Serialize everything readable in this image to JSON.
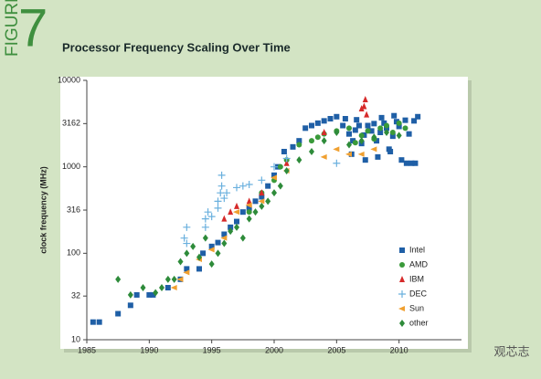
{
  "figure_label": "FIGURE",
  "figure_number": "7",
  "watermark": "观芯志",
  "chart_data": {
    "type": "scatter",
    "title": "Processor Frequency Scaling Over Time",
    "y_label": "clock frequency (MHz)",
    "xlim": [
      1985,
      2015
    ],
    "xticks": [
      1985,
      1990,
      1995,
      2000,
      2005,
      2010
    ],
    "ylim": [
      10,
      10000
    ],
    "yticks": [
      10,
      32,
      100,
      316,
      1000,
      3162,
      10000
    ],
    "log_y": true,
    "grid": false,
    "legend": "lower right",
    "series": [
      {
        "name": "Intel",
        "color": "#1f5fa6",
        "marker": "square",
        "x": [
          1985.5,
          1986,
          1987.5,
          1988.5,
          1989,
          1990,
          1990.3,
          1991.5,
          1992.5,
          1993,
          1994,
          1994.3,
          1995,
          1995.5,
          1996,
          1996.5,
          1997,
          1997.5,
          1998,
          1998.5,
          1999,
          1999.5,
          2000,
          2000.3,
          2000.8,
          2001.5,
          2002,
          2002.5,
          2003,
          2003.5,
          2004,
          2004.5,
          2005,
          2005.5,
          2006,
          2006.3,
          2006.5,
          2006.8,
          2007,
          2007.2,
          2007.5,
          2007.8,
          2008,
          2008.2,
          2008.5,
          2008.8,
          2009,
          2009.2,
          2009.5,
          2009.8,
          2010,
          2010.2,
          2010.5,
          2010.8,
          2011,
          2011.2,
          2011.5,
          2006.2,
          2007.3,
          2008.3,
          2009.3,
          2005.7,
          2006.6,
          2008.6,
          2009.6,
          2010.6,
          2011.3
        ],
        "values": [
          16,
          16,
          20,
          25,
          33,
          33,
          33,
          40,
          50,
          66,
          66,
          100,
          120,
          133,
          166,
          200,
          233,
          300,
          333,
          400,
          450,
          600,
          800,
          1000,
          1500,
          1700,
          2000,
          2800,
          3000,
          3200,
          3400,
          3600,
          3800,
          3000,
          2400,
          2000,
          2660,
          3000,
          1860,
          2330,
          3000,
          2600,
          3160,
          2000,
          2500,
          3200,
          2800,
          1600,
          2260,
          3330,
          2930,
          1200,
          3460,
          2400,
          1100,
          3400,
          3800,
          1400,
          1200,
          1300,
          1500,
          3600,
          3500,
          3700,
          3900,
          1100,
          1100
        ]
      },
      {
        "name": "AMD",
        "color": "#3a9a3a",
        "marker": "circle",
        "x": [
          1998,
          1999,
          2000,
          2000.5,
          2001,
          2002,
          2003,
          2003.5,
          2004,
          2005,
          2006,
          2006.5,
          2007,
          2007.5,
          2008,
          2008.5,
          2009,
          2009.5,
          2010,
          2010.5
        ],
        "values": [
          300,
          500,
          700,
          1000,
          1200,
          1800,
          2000,
          2200,
          2400,
          2600,
          2800,
          1900,
          2300,
          2600,
          2100,
          2800,
          3000,
          2500,
          3200,
          2800
        ]
      },
      {
        "name": "IBM",
        "color": "#d62a2a",
        "marker": "triangle",
        "x": [
          1996,
          1996.5,
          1997,
          1998,
          1999,
          2001,
          2004,
          2007,
          2007.2,
          2007.4,
          2007.3
        ],
        "values": [
          250,
          300,
          350,
          400,
          500,
          1100,
          2500,
          4700,
          5000,
          4000,
          6000
        ]
      },
      {
        "name": "DEC",
        "color": "#6ab0de",
        "marker": "plus",
        "x": [
          1992.8,
          1993,
          1993,
          1994.5,
          1994.5,
          1994.7,
          1995,
          1995.5,
          1995.5,
          1995.7,
          1995.8,
          1995.8,
          1996,
          1996.2,
          1997,
          1997.5,
          1998,
          1999,
          2000,
          2001,
          2005
        ],
        "values": [
          150,
          200,
          130,
          200,
          250,
          300,
          266,
          333,
          400,
          500,
          600,
          800,
          433,
          500,
          575,
          600,
          625,
          700,
          1000,
          1250,
          1100
        ]
      },
      {
        "name": "Sun",
        "color": "#f0a030",
        "marker": "triangle-left",
        "x": [
          1992,
          1992.5,
          1993,
          1994,
          1995,
          1996,
          1997,
          1998,
          1999,
          2000,
          2001,
          2004,
          2005,
          2006,
          2007,
          2008
        ],
        "values": [
          40,
          50,
          60,
          85,
          110,
          150,
          300,
          360,
          400,
          750,
          900,
          1300,
          1600,
          1400,
          1400,
          1600
        ]
      },
      {
        "name": "other",
        "color": "#2e8b3a",
        "marker": "diamond",
        "x": [
          1987.5,
          1988.5,
          1989.5,
          1990.5,
          1991,
          1991.5,
          1992,
          1992.5,
          1993,
          1993.5,
          1994,
          1994.5,
          1995,
          1995.5,
          1996,
          1996.5,
          1997,
          1997.5,
          1998,
          1998.5,
          1999,
          1999.5,
          2000,
          2000.5,
          2001,
          2002,
          2003,
          2004,
          2005,
          2006,
          2007,
          2008,
          2009,
          2010
        ],
        "values": [
          50,
          33,
          40,
          35,
          40,
          50,
          50,
          80,
          100,
          120,
          90,
          150,
          75,
          100,
          130,
          180,
          200,
          150,
          250,
          300,
          350,
          400,
          500,
          600,
          900,
          1200,
          1500,
          2000,
          2500,
          1800,
          2000,
          2200,
          2500,
          2300
        ]
      }
    ]
  }
}
